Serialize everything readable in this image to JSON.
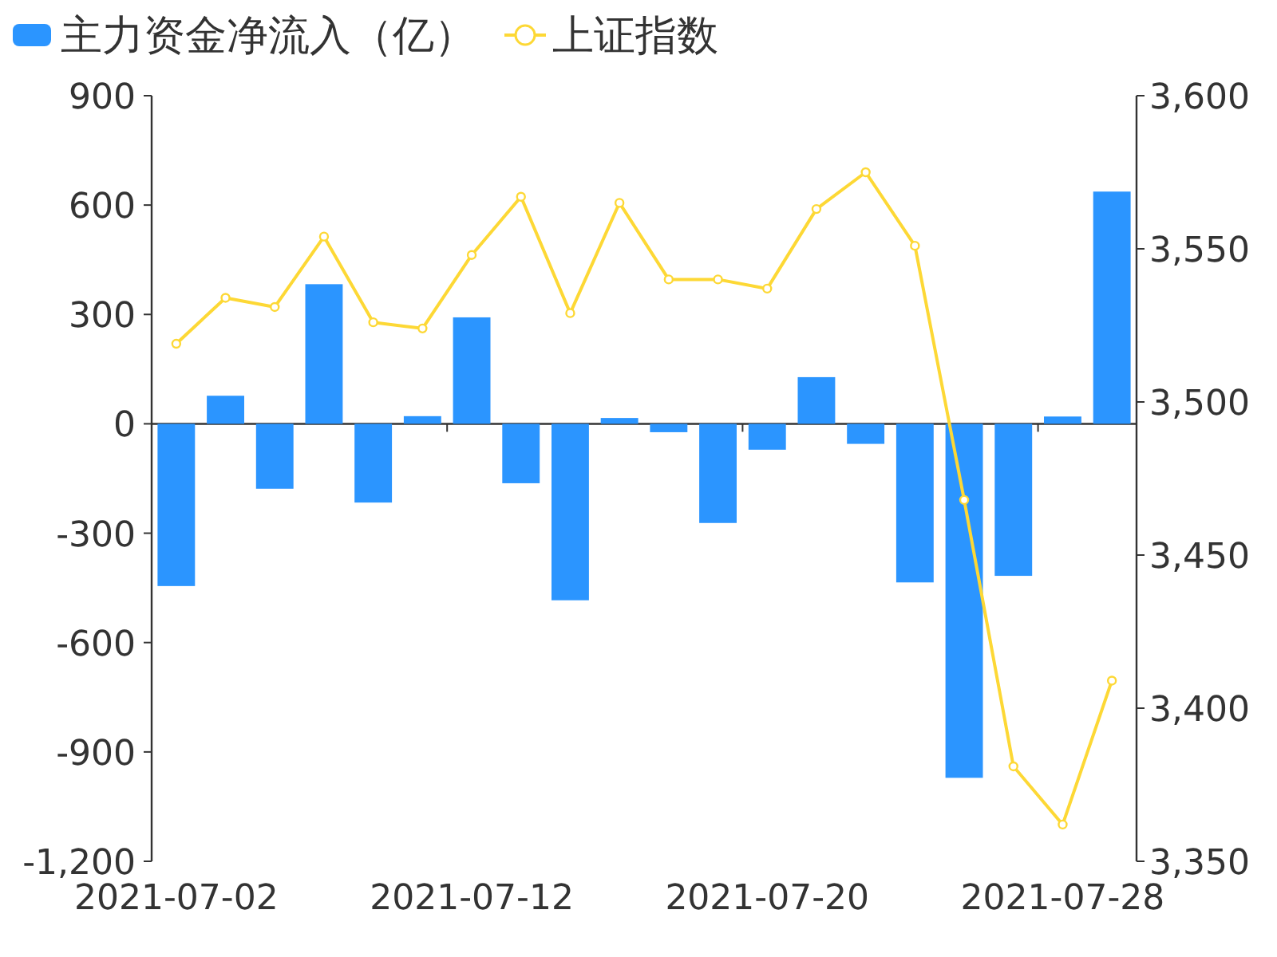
{
  "chart_data": {
    "type": "bar",
    "legend": "top left",
    "marker": "circle",
    "categories": [
      "2021-07-02",
      null,
      null,
      null,
      null,
      null,
      "2021-07-12",
      null,
      null,
      null,
      null,
      null,
      "2021-07-20",
      null,
      null,
      null,
      null,
      null,
      "2021-07-28",
      null
    ],
    "series": [
      {
        "name": "主力资金净流入（亿）",
        "color": "#2b95ff",
        "values": [
          -445,
          77,
          -178,
          383,
          -216,
          21,
          292,
          -163,
          -484,
          16,
          -23,
          -272,
          -71,
          128,
          -55,
          -435,
          -971,
          -417,
          20,
          637
        ]
      },
      {
        "name": "上证指数",
        "type": "line",
        "axis": "y2",
        "color": "#fdd835",
        "values": [
          3519,
          3534,
          3531,
          3554,
          3526,
          3524,
          3548,
          3567,
          3529,
          3565,
          3540,
          3540,
          3537,
          3563,
          3575,
          3551,
          3468,
          3381,
          3362,
          3409
        ]
      }
    ],
    "ylim": [
      -1200,
      900
    ],
    "yticks": [
      {
        "value": -1200,
        "label": "-1,200"
      },
      -900,
      -600,
      -300,
      0,
      300,
      600,
      900
    ],
    "y2lim": [
      3350,
      3600
    ],
    "y2ticks": [
      {
        "value": 3350,
        "label": "3,350"
      },
      {
        "value": 3400,
        "label": "3,400"
      },
      {
        "value": 3450,
        "label": "3,450"
      },
      {
        "value": 3500,
        "label": "3,500"
      },
      {
        "value": 3550,
        "label": "3,550"
      },
      {
        "value": 3600,
        "label": "3,600"
      }
    ]
  }
}
